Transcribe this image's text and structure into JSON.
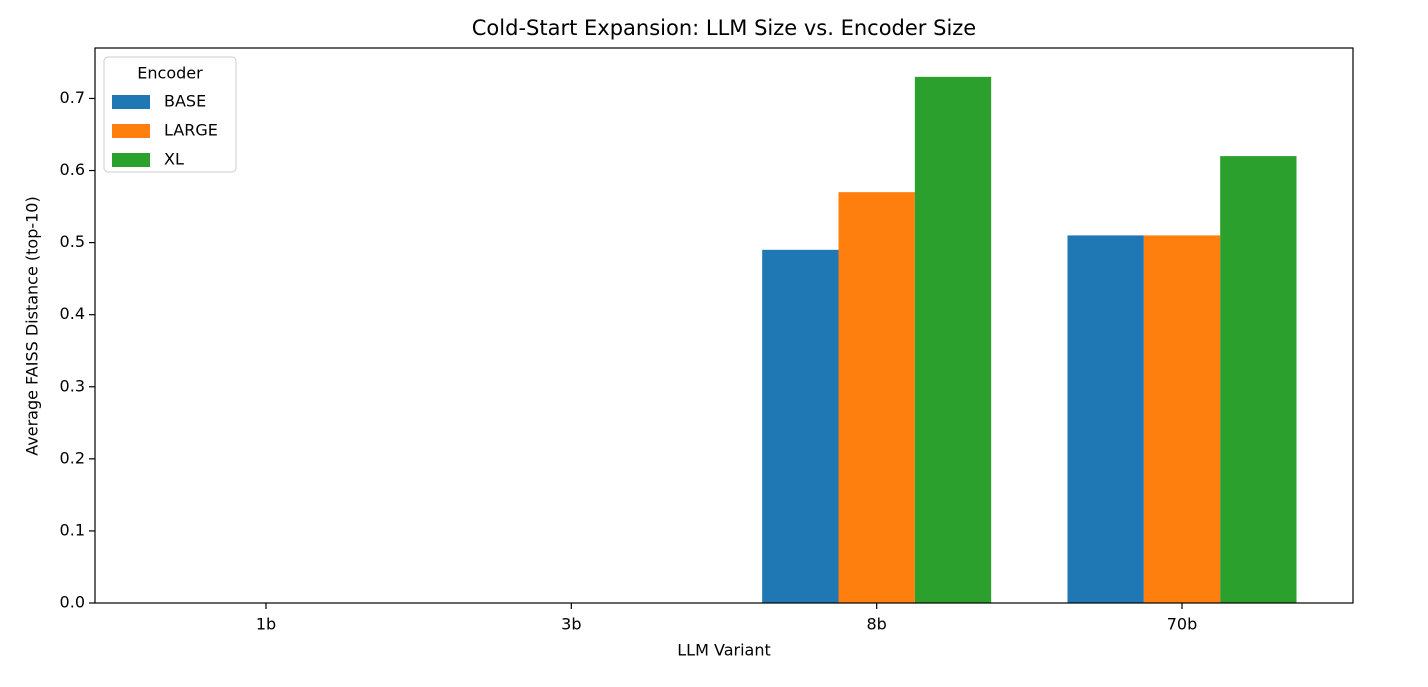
{
  "chart_data": {
    "type": "bar",
    "title": "Cold-Start Expansion: LLM Size vs. Encoder Size",
    "x_label": "LLM Variant",
    "y_label": "Average FAISS Distance (top-10)",
    "categories": [
      "1b",
      "3b",
      "8b",
      "70b"
    ],
    "series": [
      {
        "name": "BASE",
        "color": "#1f77b4",
        "values": [
          null,
          null,
          0.49,
          0.51
        ]
      },
      {
        "name": "LARGE",
        "color": "#ff7f0e",
        "values": [
          null,
          null,
          0.57,
          0.51
        ]
      },
      {
        "name": "XL",
        "color": "#2ca02c",
        "values": [
          null,
          null,
          0.73,
          0.62
        ]
      }
    ],
    "legend_title": "Encoder",
    "legend": "upper left",
    "ylim": [
      0,
      0.77
    ],
    "yticks": [
      {
        "value": 0,
        "label": "0.0"
      },
      0.1,
      0.2,
      0.3,
      0.4,
      0.5,
      0.6,
      0.7
    ]
  }
}
